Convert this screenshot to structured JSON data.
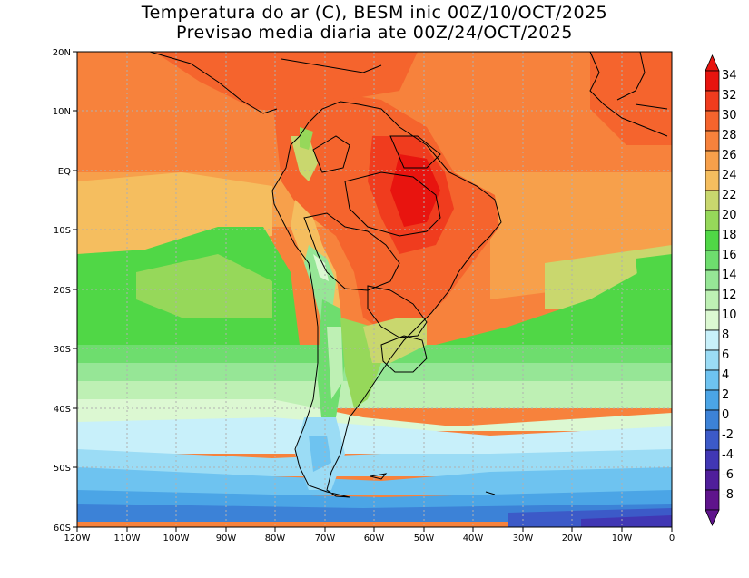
{
  "title": {
    "line1": "Temperatura do ar (C), BESM inic 00Z/10/OCT/2025",
    "line2": "Previsao media diaria ate 00Z/24/OCT/2025"
  },
  "map": {
    "lon_labels": [
      "120W",
      "110W",
      "100W",
      "90W",
      "80W",
      "70W",
      "60W",
      "50W",
      "40W",
      "30W",
      "20W",
      "10W",
      "0"
    ],
    "lat_labels": [
      "20N",
      "10N",
      "EQ",
      "10S",
      "20S",
      "30S",
      "40S",
      "50S",
      "60S"
    ],
    "lon_range": [
      -120,
      0
    ],
    "lat_range": [
      -60,
      20
    ]
  },
  "colorbar": {
    "labels": [
      "34",
      "32",
      "30",
      "28",
      "26",
      "24",
      "22",
      "20",
      "18",
      "16",
      "14",
      "12",
      "10",
      "8",
      "6",
      "4",
      "2",
      "0",
      "-2",
      "-4",
      "-6",
      "-8"
    ],
    "colors": [
      "#e8140f",
      "#f03c1e",
      "#f5642d",
      "#f7823c",
      "#f7a04b",
      "#f5be5f",
      "#c9d76e",
      "#96d85a",
      "#50d746",
      "#6edd6e",
      "#96e696",
      "#bef0b4",
      "#dcf8d2",
      "#c8f0fa",
      "#9bdcf5",
      "#6ec3f0",
      "#4ba5e6",
      "#3c82d7",
      "#3c5ac8",
      "#4137b4",
      "#501e9b",
      "#5f148c"
    ],
    "top_color": "#e8140f",
    "bottom_color": "#5f148c"
  }
}
